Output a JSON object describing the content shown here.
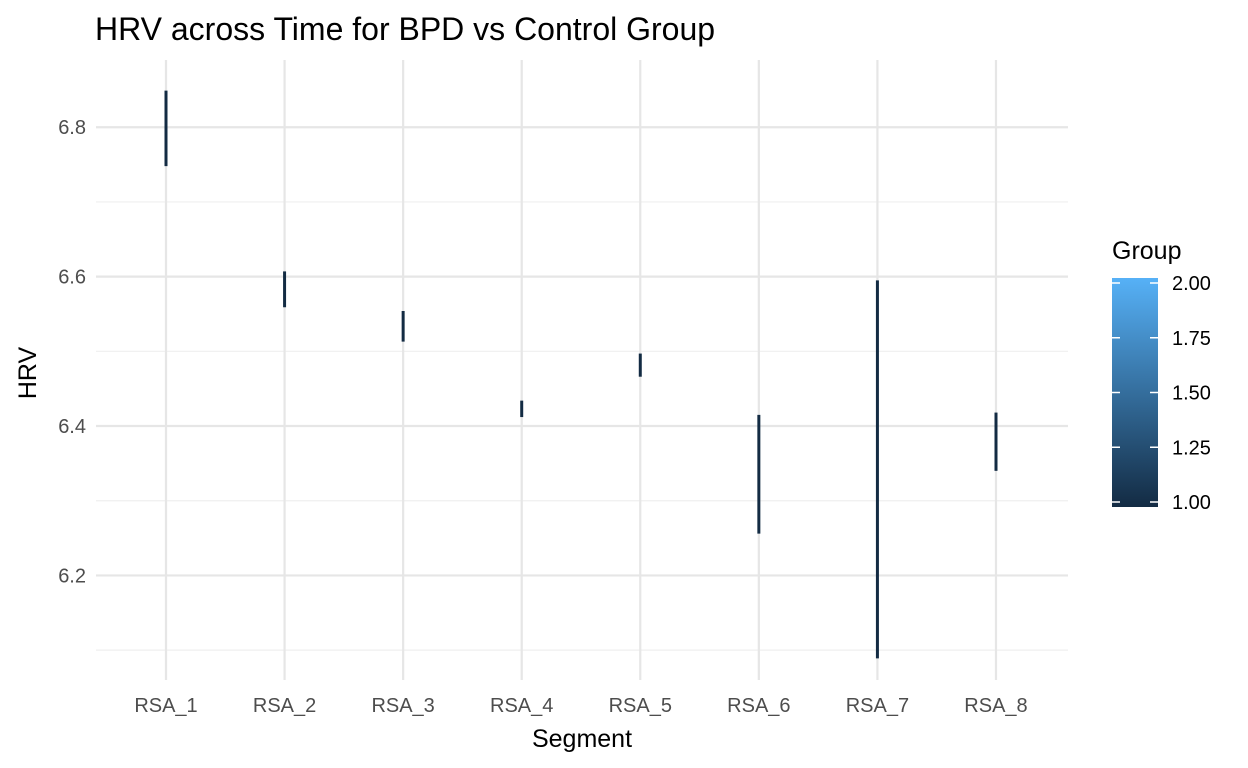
{
  "chart_data": {
    "type": "errorbar",
    "title": "HRV across Time for BPD vs Control Group",
    "xlabel": "Segment",
    "ylabel": "HRV",
    "categories": [
      "RSA_1",
      "RSA_2",
      "RSA_3",
      "RSA_4",
      "RSA_5",
      "RSA_6",
      "RSA_7",
      "RSA_8"
    ],
    "ranges": [
      {
        "category": "RSA_1",
        "low": 6.748,
        "high": 6.849
      },
      {
        "category": "RSA_2",
        "low": 6.559,
        "high": 6.607
      },
      {
        "category": "RSA_3",
        "low": 6.513,
        "high": 6.554
      },
      {
        "category": "RSA_4",
        "low": 6.412,
        "high": 6.434
      },
      {
        "category": "RSA_5",
        "low": 6.466,
        "high": 6.497
      },
      {
        "category": "RSA_6",
        "low": 6.256,
        "high": 6.415
      },
      {
        "category": "RSA_7",
        "low": 6.089,
        "high": 6.595
      },
      {
        "category": "RSA_8",
        "low": 6.34,
        "high": 6.418
      }
    ],
    "ylim": [
      6.06,
      6.89
    ],
    "y_ticks": [
      6.2,
      6.4,
      6.6,
      6.8
    ],
    "y_tick_labels": [
      "6.2",
      "6.4",
      "6.6",
      "6.8"
    ],
    "grid": true,
    "bar_color": "#132b43",
    "legend": {
      "title": "Group",
      "type": "colorbar",
      "placement": "right",
      "range": [
        1.0,
        2.0
      ],
      "ticks": [
        1.0,
        1.25,
        1.5,
        1.75,
        2.0
      ],
      "tick_labels": [
        "1.00",
        "1.25",
        "1.50",
        "1.75",
        "2.00"
      ],
      "color_low": "#132b43",
      "color_high": "#56b1f7"
    }
  }
}
